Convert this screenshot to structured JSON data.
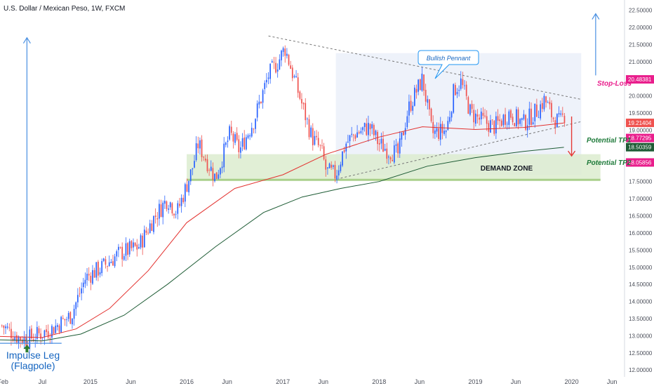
{
  "chart_data": {
    "type": "candlestick",
    "title": "U.S. Dollar / Mexican Peso, 1W, FXCM",
    "x_tick_labels": [
      "Feb",
      "Jul",
      "2015",
      "Jun",
      "2016",
      "Jun",
      "2017",
      "Jun",
      "2018",
      "Jun",
      "2019",
      "Jun",
      "2020",
      "Jun"
    ],
    "x_ticks": [
      2014.09,
      2014.5,
      2015.0,
      2015.42,
      2016.0,
      2016.42,
      2017.0,
      2017.42,
      2018.0,
      2018.42,
      2019.0,
      2019.42,
      2020.0,
      2020.42
    ],
    "x_range": [
      2014.06,
      2020.55
    ],
    "y_range": [
      11.8,
      22.8
    ],
    "y_tick_labels": [
      "12.00000",
      "12.50000",
      "13.00000",
      "13.50000",
      "14.00000",
      "14.50000",
      "15.00000",
      "15.50000",
      "16.00000",
      "16.50000",
      "17.00000",
      "17.50000",
      "18.00000",
      "18.50000",
      "19.00000",
      "19.50000",
      "20.00000",
      "20.50000",
      "21.00000",
      "21.50000",
      "22.00000",
      "22.50000"
    ],
    "y_ticks": [
      12.0,
      12.5,
      13.0,
      13.5,
      14.0,
      14.5,
      15.0,
      15.5,
      16.0,
      16.5,
      17.0,
      17.5,
      18.0,
      18.5,
      19.0,
      19.5,
      20.0,
      20.5,
      21.0,
      21.5,
      22.0,
      22.5
    ],
    "price_anchors": [
      [
        2014.08,
        13.3
      ],
      [
        2014.25,
        12.95
      ],
      [
        2014.34,
        12.9
      ],
      [
        2014.6,
        13.2
      ],
      [
        2014.8,
        13.6
      ],
      [
        2014.95,
        14.7
      ],
      [
        2015.12,
        15.0
      ],
      [
        2015.3,
        15.4
      ],
      [
        2015.5,
        15.6
      ],
      [
        2015.65,
        16.4
      ],
      [
        2015.8,
        17.0
      ],
      [
        2015.9,
        16.6
      ],
      [
        2016.05,
        17.8
      ],
      [
        2016.12,
        18.6
      ],
      [
        2016.3,
        17.6
      ],
      [
        2016.45,
        18.9
      ],
      [
        2016.55,
        18.4
      ],
      [
        2016.7,
        19.3
      ],
      [
        2016.85,
        20.6
      ],
      [
        2016.95,
        21.0
      ],
      [
        2017.02,
        21.4
      ],
      [
        2017.15,
        20.2
      ],
      [
        2017.3,
        18.8
      ],
      [
        2017.4,
        18.4
      ],
      [
        2017.45,
        17.8
      ],
      [
        2017.55,
        17.7
      ],
      [
        2017.65,
        18.6
      ],
      [
        2017.75,
        18.9
      ],
      [
        2017.9,
        19.1
      ],
      [
        2018.0,
        18.6
      ],
      [
        2018.1,
        18.4
      ],
      [
        2018.2,
        18.3
      ],
      [
        2018.3,
        19.6
      ],
      [
        2018.38,
        20.1
      ],
      [
        2018.45,
        20.5
      ],
      [
        2018.55,
        18.9
      ],
      [
        2018.7,
        19.0
      ],
      [
        2018.78,
        20.2
      ],
      [
        2018.85,
        20.4
      ],
      [
        2018.95,
        19.5
      ],
      [
        2019.05,
        19.3
      ],
      [
        2019.2,
        19.1
      ],
      [
        2019.35,
        19.5
      ],
      [
        2019.5,
        19.2
      ],
      [
        2019.65,
        19.6
      ],
      [
        2019.72,
        19.9
      ],
      [
        2019.8,
        19.4
      ],
      [
        2019.88,
        19.2
      ],
      [
        2019.92,
        19.45
      ]
    ],
    "overlays": [
      {
        "name": "",
        "color": "#e3312e",
        "points": [
          [
            2014.06,
            12.98
          ],
          [
            2014.5,
            12.95
          ],
          [
            2014.85,
            13.2
          ],
          [
            2015.2,
            13.8
          ],
          [
            2015.6,
            14.9
          ],
          [
            2016.0,
            16.3
          ],
          [
            2016.5,
            17.3
          ],
          [
            2017.0,
            17.7
          ],
          [
            2017.45,
            18.3
          ],
          [
            2018.0,
            18.8
          ],
          [
            2018.45,
            19.1
          ],
          [
            2019.0,
            19.02
          ],
          [
            2019.5,
            19.08
          ],
          [
            2019.92,
            19.21
          ]
        ]
      },
      {
        "name": "",
        "color": "#1e5c35",
        "points": [
          [
            2014.06,
            12.88
          ],
          [
            2014.5,
            12.85
          ],
          [
            2014.9,
            13.05
          ],
          [
            2015.35,
            13.6
          ],
          [
            2015.8,
            14.5
          ],
          [
            2016.3,
            15.6
          ],
          [
            2016.8,
            16.6
          ],
          [
            2017.2,
            17.05
          ],
          [
            2017.6,
            17.3
          ],
          [
            2018.0,
            17.5
          ],
          [
            2018.5,
            17.95
          ],
          [
            2019.0,
            18.2
          ],
          [
            2019.5,
            18.38
          ],
          [
            2019.92,
            18.5
          ]
        ]
      }
    ],
    "price_labels": [
      {
        "text": "20.48381",
        "value": 20.48381,
        "color": "#e91e8c"
      },
      {
        "text": "19.21404",
        "value": 19.21404,
        "color": "#ef5350"
      },
      {
        "text": "18.77295",
        "value": 18.77295,
        "color": "#e91e8c"
      },
      {
        "text": "18.50359",
        "value": 18.50359,
        "color": "#1e5c35"
      },
      {
        "text": "18.05856",
        "value": 18.05856,
        "color": "#e91e8c"
      }
    ],
    "annotations": {
      "stop_loss": {
        "text": "Stop-Loss",
        "value": 20.48381,
        "color": "#e91e8c"
      },
      "tp1": {
        "text": "Potential TP1",
        "value": 18.77295,
        "color": "#1e7a3a"
      },
      "tp2": {
        "text": "Potential TP2",
        "value": 18.05856,
        "color": "#1e7a3a"
      },
      "demand_zone": {
        "text": "DEMAND ZONE",
        "x_from": 2016.0,
        "x_to": 2020.3,
        "y_from": 17.55,
        "y_to": 18.3
      },
      "pennant_callout": {
        "text": "Bullish Pennant"
      },
      "pennant_zone": {
        "x_from": 2017.55,
        "x_to": 2020.1,
        "y_from": 17.7,
        "y_to": 21.25
      },
      "upper_trendline": [
        [
          2016.85,
          21.75
        ],
        [
          2020.1,
          19.9
        ]
      ],
      "lower_trendline": [
        [
          2017.6,
          17.6
        ],
        [
          2020.1,
          19.25
        ]
      ],
      "impulse_arrow": {
        "x": 2014.34,
        "y_from": 12.75,
        "y_to": 21.7
      },
      "future_arrow": {
        "x": 2020.25,
        "y_from": 20.6,
        "y_to": 22.4
      },
      "down_arrow": {
        "x": 2020.0,
        "y_from": 19.4,
        "y_to": 18.25
      },
      "impulse_base": {
        "x_from": 2014.06,
        "x_to": 2014.7,
        "value": 12.78
      },
      "impulse_label_1": "Impulse Leg",
      "impulse_label_2": "(Flagpole)"
    },
    "colors": {
      "up": "#2962ff",
      "down": "#ef5350"
    }
  }
}
